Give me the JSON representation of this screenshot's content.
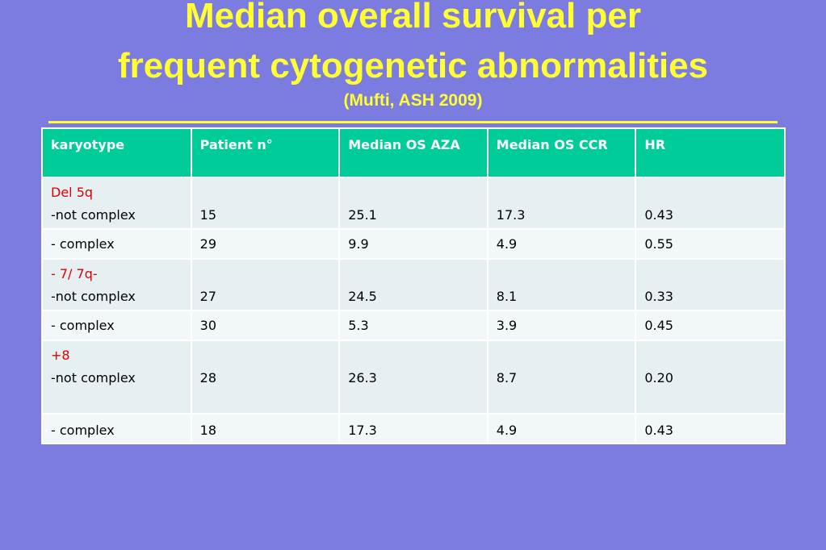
{
  "title": {
    "line1": "Median overall survival per",
    "line2": "frequent cytogenetic abnormalities",
    "subtitle": "(Mufti, ASH 2009)"
  },
  "table": {
    "headers": [
      "karyotype",
      "Patient n°",
      "Median OS AZA",
      "Median OS CCR",
      "HR"
    ],
    "rows": [
      {
        "group": "Del 5q",
        "label": "-not complex",
        "n": "15",
        "aza": "25.1",
        "ccr": "17.3",
        "hr": "0.43"
      },
      {
        "group": "",
        "label": "- complex",
        "n": "29",
        "aza": "9.9",
        "ccr": "4.9",
        "hr": "0.55"
      },
      {
        "group": "- 7/ 7q-",
        "label": "-not complex",
        "n": "27",
        "aza": "24.5",
        "ccr": "8.1",
        "hr": "0.33"
      },
      {
        "group": "",
        "label": "- complex",
        "n": "30",
        "aza": "5.3",
        "ccr": "3.9",
        "hr": "0.45"
      },
      {
        "group": "+8",
        "label": "-not complex",
        "n": "28",
        "aza": "26.3",
        "ccr": "8.7",
        "hr": "0.20"
      },
      {
        "group": "",
        "label": "- complex",
        "n": "18",
        "aza": "17.3",
        "ccr": "4.9",
        "hr": "0.43"
      }
    ]
  },
  "colors": {
    "background": "#7b7be0",
    "title": "#ffff33",
    "header": "#00cc99",
    "group_label": "#dd0000"
  }
}
